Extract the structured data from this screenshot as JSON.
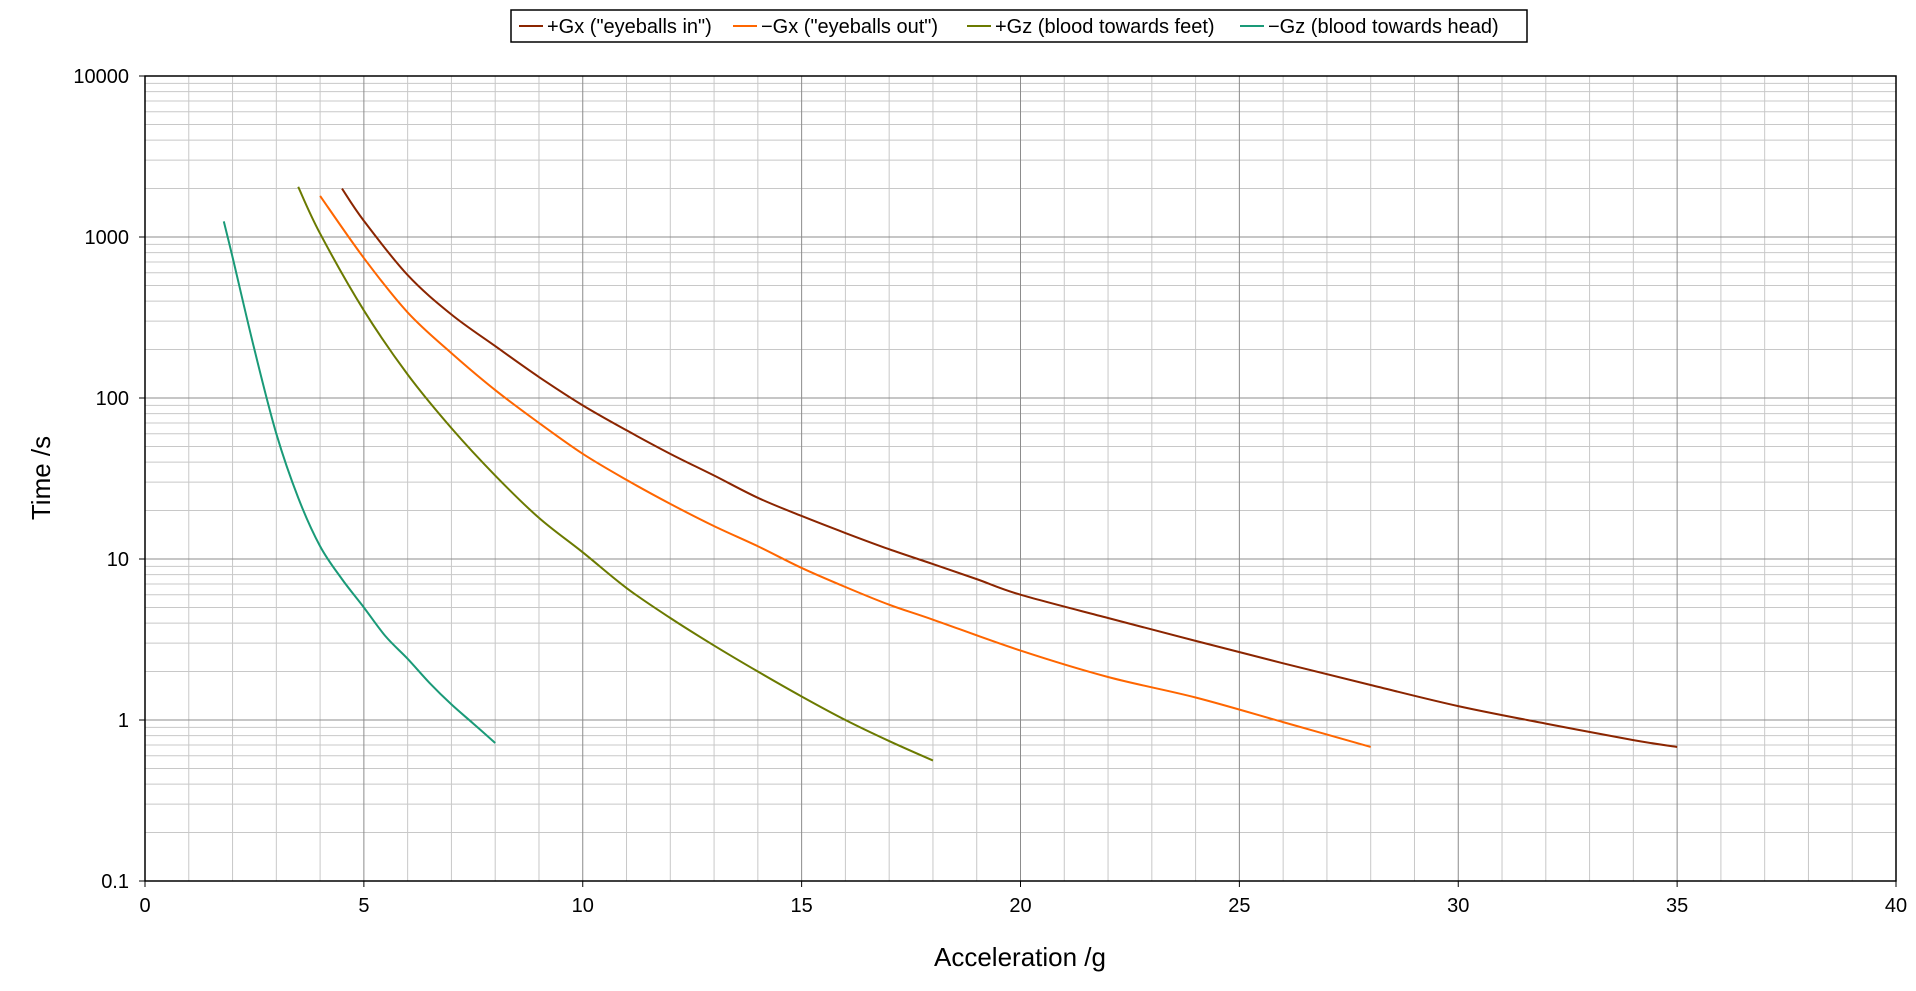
{
  "chart_data": {
    "type": "line",
    "title": "",
    "xlabel": "Acceleration /g",
    "ylabel": "Time /s",
    "xlim": [
      0,
      40
    ],
    "ylim": [
      0.1,
      10000
    ],
    "yscale": "log",
    "grid": true,
    "legend_position": "top",
    "x_ticks": [
      0,
      5,
      10,
      15,
      20,
      25,
      30,
      35,
      40
    ],
    "x_tick_labels": [
      "0",
      "5",
      "10",
      "15",
      "20",
      "25",
      "30",
      "35",
      "40"
    ],
    "y_ticks": [
      0.1,
      1,
      10,
      100,
      1000,
      10000
    ],
    "y_tick_labels": [
      "0.1",
      "1",
      "10",
      "100",
      "1000",
      "10000"
    ],
    "series": [
      {
        "name": "+Gx (\"eyeballs in\")",
        "color": "#8b2500",
        "x": [
          4.5,
          5,
          6,
          7,
          8,
          9,
          10,
          11,
          12,
          13,
          14,
          15,
          16,
          17,
          18,
          19,
          20,
          22,
          24,
          26,
          28,
          30,
          32,
          34,
          35
        ],
        "y": [
          2000,
          1260,
          580,
          330,
          210,
          135,
          90,
          63,
          45,
          33,
          24,
          18.5,
          14.5,
          11.5,
          9.3,
          7.5,
          6.0,
          4.3,
          3.1,
          2.25,
          1.65,
          1.22,
          0.95,
          0.75,
          0.68
        ]
      },
      {
        "name": "−Gx (\"eyeballs out\")",
        "color": "#ff6600",
        "x": [
          4,
          5,
          6,
          7,
          8,
          9,
          10,
          11,
          12,
          13,
          14,
          15,
          16,
          17,
          18,
          20,
          22,
          24,
          26,
          28
        ],
        "y": [
          1800,
          740,
          340,
          190,
          112,
          70,
          45,
          31,
          22,
          16,
          12,
          8.8,
          6.7,
          5.2,
          4.2,
          2.7,
          1.85,
          1.38,
          0.97,
          0.68
        ]
      },
      {
        "name": "+Gz (blood towards feet)",
        "color": "#6b7a00",
        "x": [
          3.5,
          4,
          5,
          6,
          7,
          8,
          9,
          10,
          11,
          12,
          13,
          14,
          15,
          16,
          17,
          18
        ],
        "y": [
          2050,
          1050,
          350,
          140,
          65,
          33,
          18,
          11,
          6.6,
          4.3,
          2.9,
          2.0,
          1.4,
          1.0,
          0.74,
          0.56
        ]
      },
      {
        "name": "−Gz (blood towards head)",
        "color": "#1a9a78",
        "x": [
          1.8,
          2,
          2.5,
          3,
          3.5,
          4,
          4.5,
          5,
          5.5,
          6,
          6.5,
          7,
          7.5,
          8
        ],
        "y": [
          1250,
          750,
          200,
          60,
          24,
          12,
          7.5,
          5.0,
          3.3,
          2.4,
          1.7,
          1.25,
          0.95,
          0.72
        ]
      }
    ]
  }
}
